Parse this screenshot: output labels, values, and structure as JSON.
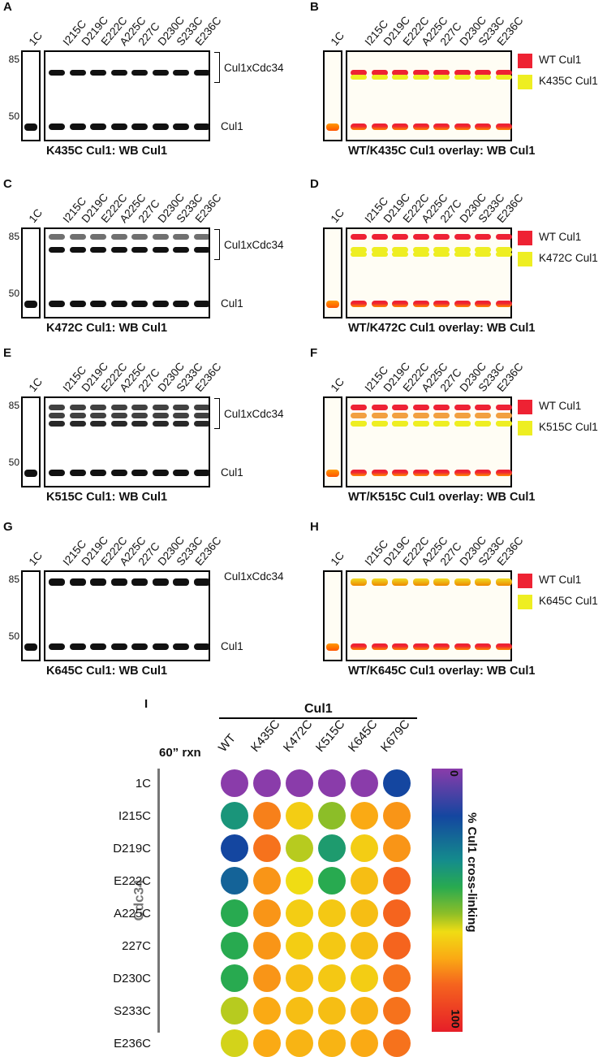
{
  "lanes": [
    "1C",
    "I215C",
    "D219C",
    "E222C",
    "A225C",
    "227C",
    "D230C",
    "S233C",
    "E236C"
  ],
  "mw_markers": [
    "85",
    "50"
  ],
  "panels": [
    {
      "letter": "A",
      "type": "wb",
      "caption": "K435C Cul1: WB Cul1",
      "side_upper": "Cul1xCdc34",
      "side_lower": "Cul1"
    },
    {
      "letter": "B",
      "type": "overlay",
      "caption": "WT/K435C Cul1 overlay: WB Cul1",
      "legend": [
        "WT Cul1",
        "K435C Cul1"
      ]
    },
    {
      "letter": "C",
      "type": "wb",
      "caption": "K472C Cul1: WB Cul1",
      "side_upper": "Cul1xCdc34",
      "side_lower": "Cul1"
    },
    {
      "letter": "D",
      "type": "overlay",
      "caption": "WT/K472C Cul1 overlay: WB Cul1",
      "legend": [
        "WT Cul1",
        "K472C Cul1"
      ]
    },
    {
      "letter": "E",
      "type": "wb",
      "caption": "K515C Cul1: WB Cul1",
      "side_upper": "Cul1xCdc34",
      "side_lower": "Cul1"
    },
    {
      "letter": "F",
      "type": "overlay",
      "caption": "WT/K515C Cul1 overlay: WB Cul1",
      "legend": [
        "WT Cul1",
        "K515C Cul1"
      ]
    },
    {
      "letter": "G",
      "type": "wb",
      "caption": "K645C Cul1: WB Cul1",
      "side_upper": "Cul1xCdc34",
      "side_lower": "Cul1"
    },
    {
      "letter": "H",
      "type": "overlay",
      "caption": "WT/K645C Cul1 overlay: WB Cul1",
      "legend": [
        "WT Cul1",
        "K645C Cul1"
      ]
    }
  ],
  "legend_colors": {
    "wt": "#ee2233",
    "mutant": "#eeee22"
  },
  "panel_i": {
    "letter": "I",
    "group_label": "Cul1",
    "rxn_label": "60” rxn",
    "row_group_label": "Cdc34",
    "columns": [
      "WT",
      "K435C",
      "K472C",
      "K515C",
      "K645C",
      "K679C"
    ],
    "rows": [
      "1C",
      "I215C",
      "D219C",
      "E222C",
      "A225C",
      "227C",
      "D230C",
      "S233C",
      "E236C"
    ],
    "colorbar_min": "0",
    "colorbar_max": "100",
    "colorbar_title": "% Cul1 cross-linking"
  },
  "chart_data": {
    "type": "heatmap",
    "xlabel": "Cul1",
    "ylabel": "Cdc34",
    "columns": [
      "WT",
      "K435C",
      "K472C",
      "K515C",
      "K645C",
      "K679C"
    ],
    "rows": [
      "1C",
      "I215C",
      "D219C",
      "E222C",
      "A225C",
      "227C",
      "D230C",
      "S233C",
      "E236C"
    ],
    "values": [
      [
        0,
        0,
        0,
        0,
        0,
        18
      ],
      [
        38,
        78,
        65,
        55,
        72,
        75
      ],
      [
        18,
        80,
        58,
        40,
        65,
        75
      ],
      [
        25,
        75,
        62,
        45,
        68,
        82
      ],
      [
        45,
        75,
        65,
        66,
        68,
        82
      ],
      [
        45,
        75,
        65,
        66,
        68,
        82
      ],
      [
        45,
        75,
        68,
        66,
        65,
        80
      ],
      [
        58,
        72,
        68,
        68,
        70,
        80
      ],
      [
        60,
        72,
        70,
        70,
        72,
        80
      ]
    ],
    "colorbar_range": [
      0,
      100
    ]
  }
}
